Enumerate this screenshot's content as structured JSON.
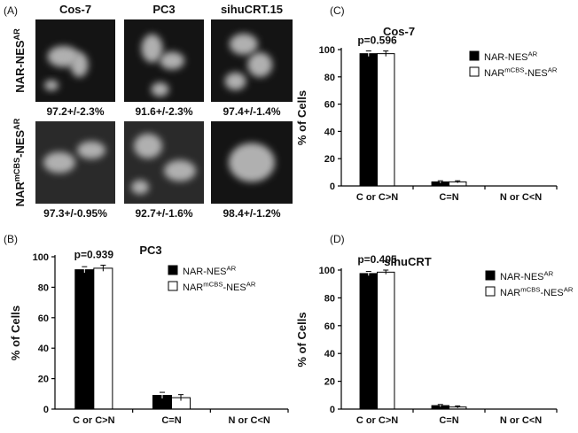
{
  "panel_a": {
    "label": "(A)",
    "columns": [
      "Cos-7",
      "PC3",
      "sihuCRT.15"
    ],
    "rows": [
      {
        "label": [
          {
            "text": "NAR-NES"
          },
          {
            "text": "AR",
            "sup": true
          }
        ],
        "captions": [
          "97.2+/-2.3%",
          "91.6+/-2.3%",
          "97.4+/-1.4%"
        ]
      },
      {
        "label": [
          {
            "text": "NAR"
          },
          {
            "text": "mCBS",
            "sup": true
          },
          {
            "text": "-NES"
          },
          {
            "text": "AR",
            "sup": true
          }
        ],
        "captions": [
          "97.3+/-0.95%",
          "92.7+/-1.6%",
          "98.4+/-1.2%"
        ]
      }
    ]
  },
  "chart_data": [
    {
      "type": "bar",
      "panel": "(B)",
      "title": "PC3",
      "ylabel": "% of Cells",
      "annotation": "p=0.939",
      "categories": [
        "C or C>N",
        "C=N",
        "N or C<N"
      ],
      "series": [
        {
          "name": [
            {
              "text": "NAR-NES"
            },
            {
              "text": "AR",
              "sup": true
            }
          ],
          "color": "#000000",
          "values": [
            91.5,
            9,
            0
          ],
          "errors": [
            2,
            2,
            0
          ]
        },
        {
          "name": [
            {
              "text": "NAR"
            },
            {
              "text": "mCBS",
              "sup": true
            },
            {
              "text": "-NES"
            },
            {
              "text": "AR",
              "sup": true
            }
          ],
          "color": "#ffffff",
          "values": [
            92.5,
            7.5,
            0
          ],
          "errors": [
            2,
            2,
            0
          ]
        }
      ],
      "ylim": [
        0,
        100
      ],
      "yticks": [
        0,
        20,
        40,
        60,
        80,
        100
      ]
    },
    {
      "type": "bar",
      "panel": "(C)",
      "title": "Cos-7",
      "ylabel": "% of Cells",
      "annotation": "p=0.596",
      "categories": [
        "C or C>N",
        "C=N",
        "N or C<N"
      ],
      "series": [
        {
          "name": [
            {
              "text": "NAR-NES"
            },
            {
              "text": "AR",
              "sup": true
            }
          ],
          "color": "#000000",
          "values": [
            97,
            3,
            0
          ],
          "errors": [
            2,
            0.8,
            0
          ]
        },
        {
          "name": [
            {
              "text": "NAR"
            },
            {
              "text": "mCBS",
              "sup": true
            },
            {
              "text": "-NES"
            },
            {
              "text": "AR",
              "sup": true
            }
          ],
          "color": "#ffffff",
          "values": [
            97,
            3,
            0
          ],
          "errors": [
            2,
            0.8,
            0
          ]
        }
      ],
      "ylim": [
        0,
        100
      ],
      "yticks": [
        0,
        20,
        40,
        60,
        80,
        100
      ]
    },
    {
      "type": "bar",
      "panel": "(D)",
      "title": "sihuCRT",
      "ylabel": "% of Cells",
      "annotation": "p=0.405",
      "categories": [
        "C or C>N",
        "C=N",
        "N or C<N"
      ],
      "series": [
        {
          "name": [
            {
              "text": "NAR-NES"
            },
            {
              "text": "AR",
              "sup": true
            }
          ],
          "color": "#000000",
          "values": [
            97.5,
            2.5,
            0
          ],
          "errors": [
            1.5,
            0.8,
            0
          ]
        },
        {
          "name": [
            {
              "text": "NAR"
            },
            {
              "text": "mCBS",
              "sup": true
            },
            {
              "text": "-NES"
            },
            {
              "text": "AR",
              "sup": true
            }
          ],
          "color": "#ffffff",
          "values": [
            98.5,
            1.5,
            0
          ],
          "errors": [
            1.5,
            0.8,
            0
          ]
        }
      ],
      "ylim": [
        0,
        100
      ],
      "yticks": [
        0,
        20,
        40,
        60,
        80,
        100
      ]
    }
  ]
}
